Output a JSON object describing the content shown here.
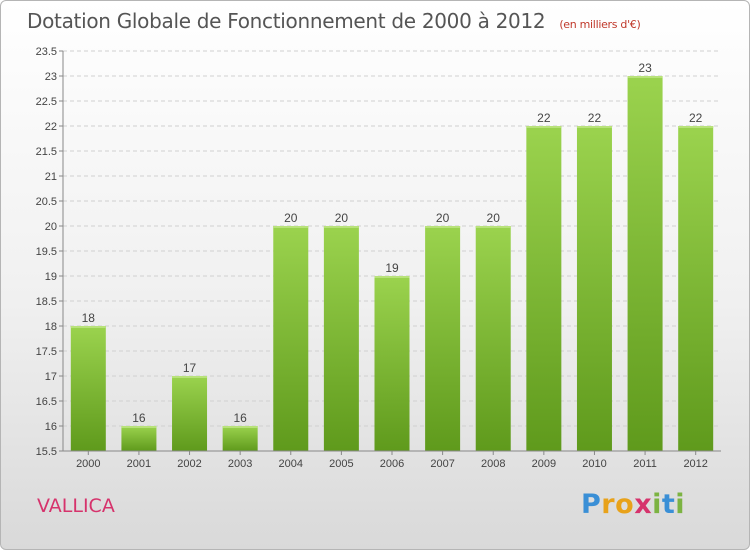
{
  "title": "Dotation Globale de Fonctionnement de 2000 à 2012",
  "unit_label": "(en milliers d'€)",
  "commune": "VALLICA",
  "logo": "Proxiti",
  "colors": {
    "bar_top": "#9bd34e",
    "bar_bottom": "#5f9a1c",
    "axis": "#888888",
    "grid": "#d0d0d0"
  },
  "chart_data": {
    "type": "bar",
    "categories": [
      "2000",
      "2001",
      "2002",
      "2003",
      "2004",
      "2005",
      "2006",
      "2007",
      "2008",
      "2009",
      "2010",
      "2011",
      "2012"
    ],
    "values": [
      18,
      16,
      17,
      16,
      20,
      20,
      19,
      20,
      20,
      22,
      22,
      23,
      22
    ],
    "data_labels": [
      "18",
      "16",
      "17",
      "16",
      "20",
      "20",
      "19",
      "20",
      "20",
      "22",
      "22",
      "23",
      "22"
    ],
    "title": "Dotation Globale de Fonctionnement de 2000 à 2012",
    "xlabel": "",
    "ylabel": "",
    "ylim": [
      15.5,
      23.5
    ],
    "yticks": [
      15.5,
      16,
      16.5,
      17,
      17.5,
      18,
      18.5,
      19,
      19.5,
      20,
      20.5,
      21,
      21.5,
      22,
      22.5,
      23,
      23.5
    ],
    "ytick_labels": [
      "15.5",
      "16",
      "16.5",
      "17",
      "17.5",
      "18",
      "18.5",
      "19",
      "19.5",
      "20",
      "20.5",
      "21",
      "21.5",
      "22",
      "22.5",
      "23",
      "23.5"
    ],
    "grid": true,
    "legend": "none"
  }
}
